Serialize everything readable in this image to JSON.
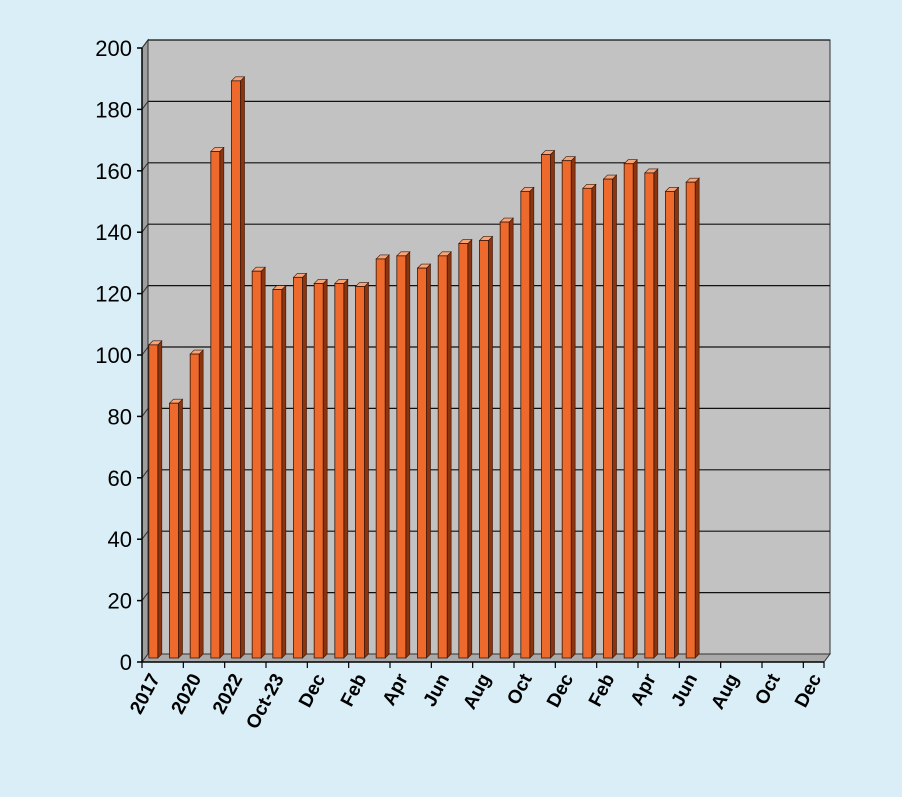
{
  "chart_data": {
    "type": "bar",
    "title": "",
    "xlabel": "",
    "ylabel": "",
    "ylim": [
      0,
      200
    ],
    "yticks": [
      "0",
      "20",
      "40",
      "60",
      "80",
      "100",
      "120",
      "140",
      "160",
      "180",
      "200"
    ],
    "grid": true,
    "legend": "none",
    "style": "3d",
    "categories": [
      "2017",
      "",
      "2020",
      "",
      "2022",
      "",
      "Oct-23",
      "",
      "Dec",
      "",
      "Feb",
      "",
      "Apr",
      "",
      "Jun",
      "",
      "Aug",
      "",
      "Oct",
      "",
      "Dec",
      "",
      "Feb",
      "",
      "Apr",
      "",
      "Jun",
      "",
      "Aug",
      "",
      "Oct",
      "",
      "Dec"
    ],
    "values": [
      102,
      83,
      99,
      165,
      188,
      126,
      120,
      124,
      122,
      122,
      121,
      130,
      131,
      127,
      131,
      135,
      136,
      142,
      152,
      164,
      162,
      153,
      156,
      161,
      158,
      152,
      155,
      null,
      null,
      null,
      null,
      null,
      null
    ],
    "colors": {
      "bar": "#ed6a2c",
      "bar_side": "#8a3410",
      "bar_top": "#f6a57a",
      "plot_bg": "#c2c2c2",
      "plot_side": "#9e9e9e",
      "floor": "#a9a9a9",
      "page_bg": "#d9eef6"
    }
  }
}
